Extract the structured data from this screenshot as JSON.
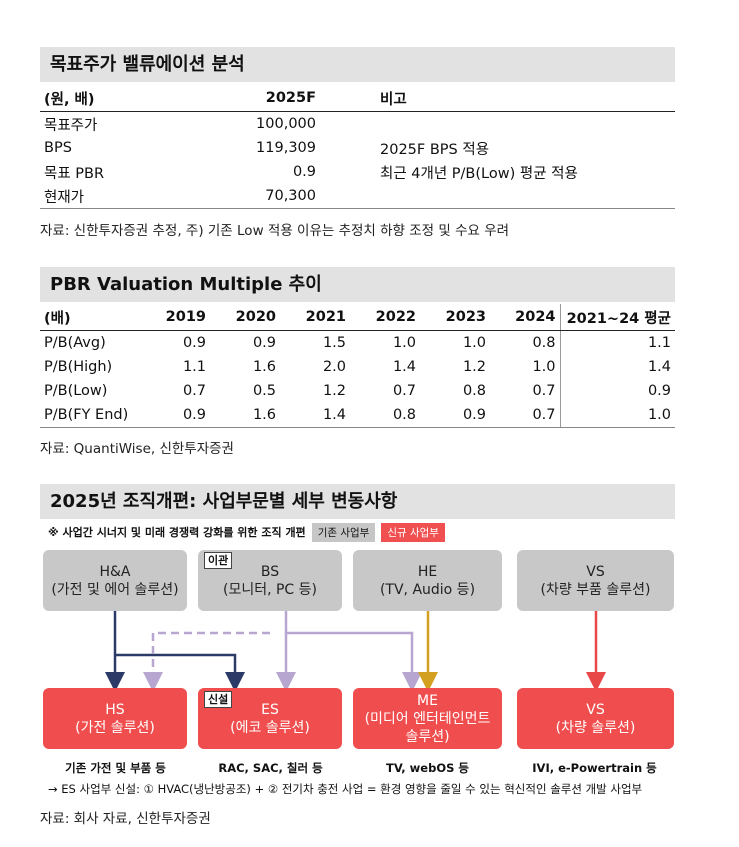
{
  "valuation": {
    "title": "목표주가 밸류에이션 분석",
    "headers": [
      "(원, 배)",
      "2025F",
      "비고"
    ],
    "rows": [
      {
        "label": "목표주가",
        "value": "100,000",
        "note": ""
      },
      {
        "label": "BPS",
        "value": "119,309",
        "note": "2025F BPS 적용"
      },
      {
        "label": "목표 PBR",
        "value": "0.9",
        "note": "최근 4개년 P/B(Low) 평균 적용"
      },
      {
        "label": "현재가",
        "value": "70,300",
        "note": ""
      }
    ],
    "source": "자료: 신한투자증권 추정, 주) 기존 Low 적용 이유는 추정치 하향 조정 및 수요 우려"
  },
  "pbr": {
    "title": "PBR Valuation Multiple 추이",
    "headers": [
      "(배)",
      "2019",
      "2020",
      "2021",
      "2022",
      "2023",
      "2024",
      "2021~24 평균"
    ],
    "rows": [
      {
        "label": "P/B(Avg)",
        "values": [
          "0.9",
          "0.9",
          "1.5",
          "1.0",
          "1.0",
          "0.8",
          "1.1"
        ]
      },
      {
        "label": "P/B(High)",
        "values": [
          "1.1",
          "1.6",
          "2.0",
          "1.4",
          "1.2",
          "1.0",
          "1.4"
        ]
      },
      {
        "label": "P/B(Low)",
        "values": [
          "0.7",
          "0.5",
          "1.2",
          "0.7",
          "0.8",
          "0.7",
          "0.9"
        ]
      },
      {
        "label": "P/B(FY End)",
        "values": [
          "0.9",
          "1.6",
          "1.4",
          "0.8",
          "0.9",
          "0.7",
          "1.0"
        ]
      }
    ],
    "source": "자료: QuantiWise, 신한투자증권"
  },
  "org": {
    "title": "2025년 조직개편: 사업부문별 세부 변동사항",
    "note": "※ 사업간 시너지 및 미래 경쟁력 강화를 위한 조직 개편",
    "legend_existing": "기존 사업부",
    "legend_new": "신규 사업부",
    "top_boxes": [
      {
        "line1": "H&A",
        "line2": "(가전 및 에어 솔루션)"
      },
      {
        "line1": "BS",
        "line2": "(모니터, PC 등)"
      },
      {
        "line1": "HE",
        "line2": "(TV, Audio 등)"
      },
      {
        "line1": "VS",
        "line2": "(차량 부품 솔루션)"
      }
    ],
    "tag_moved": "이관",
    "tag_new": "신설",
    "bottom_boxes": [
      {
        "line1": "HS",
        "line2": "(가전 솔루션)",
        "line3": ""
      },
      {
        "line1": "ES",
        "line2": "(에코 솔루션)",
        "line3": ""
      },
      {
        "line1": "ME",
        "line2": "(미디어 엔터테인먼트",
        "line3": "솔루션)"
      },
      {
        "line1": "VS",
        "line2": "(차량 솔루션)",
        "line3": ""
      }
    ],
    "captions": [
      "기존 가전 및 부품 등",
      "RAC, SAC, 칠러 등",
      "TV, webOS 등",
      "IVI, e-Powertrain 등"
    ],
    "footnote": "→ ES 사업부 신설: ① HVAC(냉난방공조) + ② 전기차 충전 사업 = 환경 영향을 줄일 수 있는 혁신적인 솔루션 개발 사업부",
    "source": "자료: 회사 자료, 신한투자증권",
    "colors": {
      "existing": "#c8c8c8",
      "new": "#f04e4e",
      "arrow_ha": "#2b3a67",
      "arrow_bs": "#b7a6cf",
      "arrow_he": "#d4a020",
      "arrow_vs": "#e84848"
    }
  }
}
